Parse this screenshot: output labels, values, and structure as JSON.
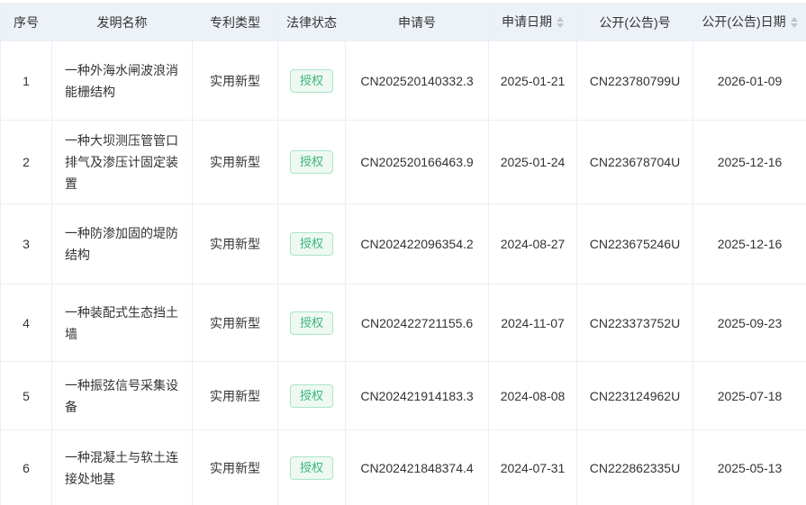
{
  "table": {
    "columns": [
      {
        "key": "index",
        "label": "序号",
        "sortable": false,
        "width": 57
      },
      {
        "key": "name",
        "label": "发明名称",
        "sortable": false,
        "width": 156
      },
      {
        "key": "type",
        "label": "专利类型",
        "sortable": false,
        "width": 95
      },
      {
        "key": "status",
        "label": "法律状态",
        "sortable": false,
        "width": 75
      },
      {
        "key": "app_no",
        "label": "申请号",
        "sortable": false,
        "width": 159
      },
      {
        "key": "app_date",
        "label": "申请日期",
        "sortable": true,
        "width": 98
      },
      {
        "key": "pub_no",
        "label": "公开(公告)号",
        "sortable": false,
        "width": 129
      },
      {
        "key": "pub_date",
        "label": "公开(公告)日期",
        "sortable": true,
        "width": 126
      }
    ],
    "rows": [
      {
        "index": "1",
        "name": "一种外海水闸波浪消能栅结构",
        "type": "实用新型",
        "status": "授权",
        "app_no": "CN202520140332.3",
        "app_date": "2025-01-21",
        "pub_no": "CN223780799U",
        "pub_date": "2026-01-09"
      },
      {
        "index": "2",
        "name": "一种大坝测压管管口排气及渗压计固定装置",
        "type": "实用新型",
        "status": "授权",
        "app_no": "CN202520166463.9",
        "app_date": "2025-01-24",
        "pub_no": "CN223678704U",
        "pub_date": "2025-12-16"
      },
      {
        "index": "3",
        "name": "一种防渗加固的堤防结构",
        "type": "实用新型",
        "status": "授权",
        "app_no": "CN202422096354.2",
        "app_date": "2024-08-27",
        "pub_no": "CN223675246U",
        "pub_date": "2025-12-16"
      },
      {
        "index": "4",
        "name": "一种装配式生态挡土墙",
        "type": "实用新型",
        "status": "授权",
        "app_no": "CN202422721155.6",
        "app_date": "2024-11-07",
        "pub_no": "CN223373752U",
        "pub_date": "2025-09-23"
      },
      {
        "index": "5",
        "name": "一种振弦信号采集设备",
        "type": "实用新型",
        "status": "授权",
        "app_no": "CN202421914183.3",
        "app_date": "2024-08-08",
        "pub_no": "CN223124962U",
        "pub_date": "2025-07-18"
      },
      {
        "index": "6",
        "name": "一种混凝土与软土连接处地基",
        "type": "实用新型",
        "status": "授权",
        "app_no": "CN202421848374.4",
        "app_date": "2024-07-31",
        "pub_no": "CN222862335U",
        "pub_date": "2025-05-13"
      }
    ],
    "colors": {
      "header_background": "#edf2f9",
      "grid_border": "#ebeef5",
      "body_text": "#333333",
      "status_badge_text": "#3db57c",
      "status_badge_background": "#eef9f2",
      "status_badge_border": "#a9e3c9",
      "sort_caret": "#c0c4cc"
    }
  }
}
